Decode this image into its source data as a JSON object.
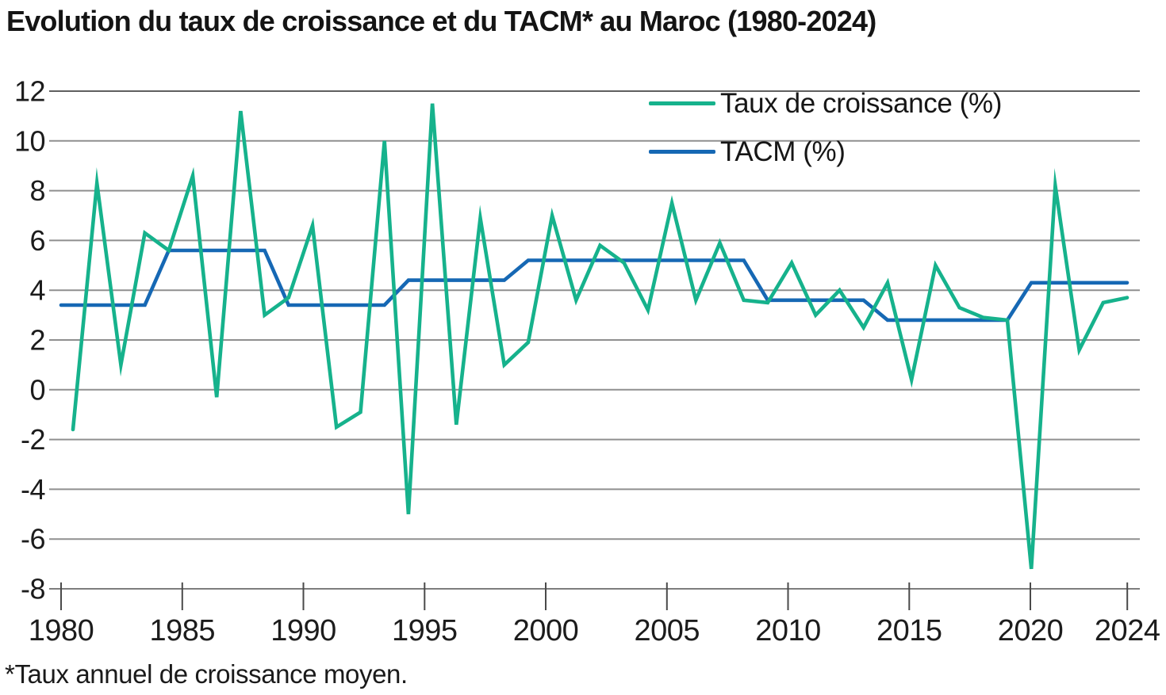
{
  "page": {
    "footnote": "*Taux annuel de croissance moyen."
  },
  "colors": {
    "growth": "#16b28c",
    "tacm": "#1668b4",
    "grid": "#8f8f8f",
    "grid_top": "#606060",
    "axis": "#7d7d7d",
    "tick": "#4a4a4a",
    "label": "#1c1c1c"
  },
  "chart_data": {
    "type": "line",
    "title": "Evolution du taux de croissance et du TACM* au Maroc (1980-2024)",
    "xlabel": "",
    "ylabel": "",
    "ylim": [
      -8,
      12
    ],
    "grid": "horizontal",
    "legend_position": "top-right-inside",
    "x": [
      1980,
      1981,
      1982,
      1983,
      1984,
      1985,
      1986,
      1987,
      1988,
      1989,
      1990,
      1991,
      1992,
      1993,
      1994,
      1995,
      1996,
      1997,
      1998,
      1999,
      2000,
      2001,
      2002,
      2003,
      2004,
      2005,
      2006,
      2007,
      2008,
      2009,
      2010,
      2011,
      2012,
      2013,
      2014,
      2015,
      2016,
      2017,
      2018,
      2019,
      2020,
      2021,
      2022,
      2023,
      2024
    ],
    "x_tick_labels": [
      1980,
      1985,
      1990,
      1995,
      2000,
      2005,
      2010,
      2015,
      2020,
      2024
    ],
    "y_ticks": [
      12,
      10,
      8,
      6,
      4,
      2,
      0,
      -2,
      -4,
      -6,
      -8
    ],
    "series": [
      {
        "name": "Taux de croissance (%)",
        "color_key": "growth",
        "values": [
          -1.6,
          8.3,
          1.0,
          6.3,
          5.6,
          8.6,
          -0.3,
          11.2,
          3.0,
          3.7,
          6.6,
          -1.5,
          -0.9,
          10.0,
          -5.0,
          11.5,
          -1.4,
          6.9,
          1.0,
          1.9,
          7.0,
          3.6,
          5.8,
          5.1,
          3.2,
          7.5,
          3.6,
          5.9,
          3.6,
          3.5,
          5.1,
          3.0,
          4.0,
          2.5,
          4.3,
          0.4,
          5.0,
          3.3,
          2.9,
          2.8,
          -7.2,
          8.2,
          1.6,
          3.5,
          3.7
        ]
      },
      {
        "name": "TACM (%)",
        "color_key": "tacm",
        "values": [
          3.4,
          3.4,
          3.4,
          3.4,
          5.6,
          5.6,
          5.6,
          5.6,
          5.6,
          3.4,
          3.4,
          3.4,
          3.4,
          3.4,
          4.4,
          4.4,
          4.4,
          4.4,
          4.4,
          5.2,
          5.2,
          5.2,
          5.2,
          5.2,
          5.2,
          5.2,
          5.2,
          5.2,
          5.2,
          3.6,
          3.6,
          3.6,
          3.6,
          3.6,
          2.8,
          2.8,
          2.8,
          2.8,
          2.8,
          2.8,
          4.3,
          4.3,
          4.3,
          4.3,
          4.3
        ]
      }
    ]
  }
}
